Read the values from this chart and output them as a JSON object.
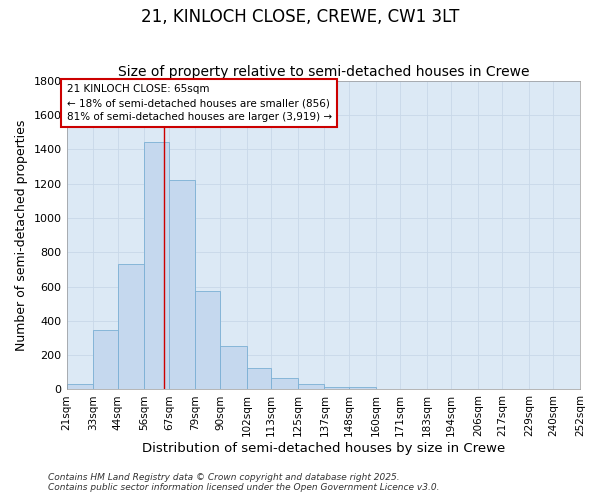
{
  "title": "21, KINLOCH CLOSE, CREWE, CW1 3LT",
  "subtitle": "Size of property relative to semi-detached houses in Crewe",
  "xlabel": "Distribution of semi-detached houses by size in Crewe",
  "ylabel": "Number of semi-detached properties",
  "footer_line1": "Contains HM Land Registry data © Crown copyright and database right 2025.",
  "footer_line2": "Contains public sector information licensed under the Open Government Licence v3.0.",
  "annotation_title": "21 KINLOCH CLOSE: 65sqm",
  "annotation_line1": "← 18% of semi-detached houses are smaller (856)",
  "annotation_line2": "81% of semi-detached houses are larger (3,919) →",
  "bar_left_edges": [
    21,
    33,
    44,
    56,
    67,
    79,
    90,
    102,
    113,
    125,
    137,
    148,
    160,
    171,
    183,
    194,
    206,
    217,
    229,
    240
  ],
  "bar_widths": [
    12,
    11,
    12,
    11,
    12,
    11,
    12,
    11,
    12,
    12,
    11,
    12,
    11,
    12,
    11,
    12,
    11,
    12,
    11,
    12
  ],
  "bar_heights": [
    30,
    345,
    730,
    1440,
    1220,
    575,
    255,
    125,
    65,
    30,
    15,
    15,
    3,
    3,
    3,
    3,
    3,
    0,
    3,
    3
  ],
  "bar_color": "#c5d8ee",
  "bar_edge_color": "#7aafd4",
  "vline_color": "#cc0000",
  "vline_x": 65,
  "ylim": [
    0,
    1800
  ],
  "yticks": [
    0,
    200,
    400,
    600,
    800,
    1000,
    1200,
    1400,
    1600,
    1800
  ],
  "xlim": [
    21,
    252
  ],
  "xtick_labels": [
    "21sqm",
    "33sqm",
    "44sqm",
    "56sqm",
    "67sqm",
    "79sqm",
    "90sqm",
    "102sqm",
    "113sqm",
    "125sqm",
    "137sqm",
    "148sqm",
    "160sqm",
    "171sqm",
    "183sqm",
    "194sqm",
    "206sqm",
    "217sqm",
    "229sqm",
    "240sqm",
    "252sqm"
  ],
  "xtick_positions": [
    21,
    33,
    44,
    56,
    67,
    79,
    90,
    102,
    113,
    125,
    137,
    148,
    160,
    171,
    183,
    194,
    206,
    217,
    229,
    240,
    252
  ],
  "grid_color": "#c8d8e8",
  "background_color": "#dce9f5",
  "fig_background_color": "#ffffff",
  "annotation_box_color": "#ffffff",
  "annotation_box_edge": "#cc0000",
  "title_fontsize": 12,
  "subtitle_fontsize": 10,
  "axis_label_fontsize": 9,
  "tick_label_fontsize": 7.5,
  "annotation_fontsize": 7.5,
  "footer_fontsize": 6.5
}
